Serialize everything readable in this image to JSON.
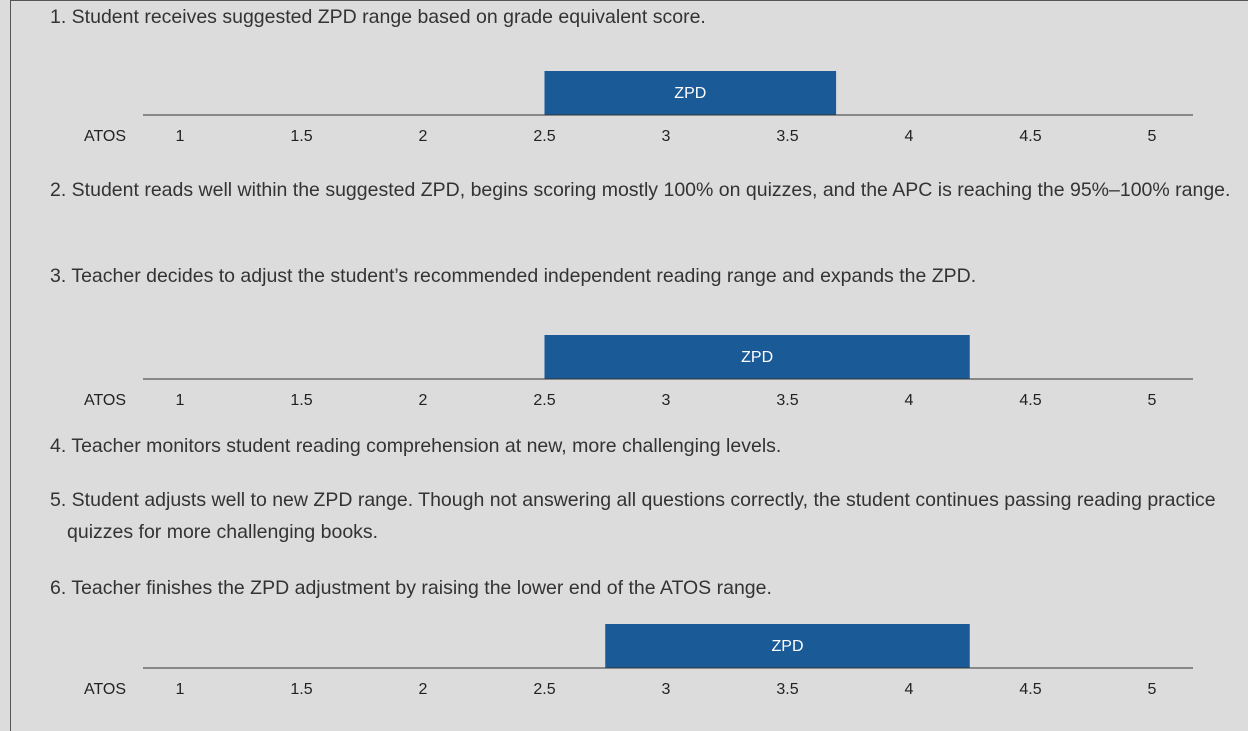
{
  "steps": [
    "1. Student receives suggested ZPD range based on grade equivalent score.",
    "2. Student reads well within the suggested ZPD, begins scoring mostly 100% on quizzes, and the APC is reaching the 95%–100% range.",
    "3. Teacher decides to adjust the student’s recommended independent reading range and expands the ZPD.",
    "4. Teacher monitors student reading comprehension at new, more challenging levels.",
    "5. Student adjusts well to new ZPD range. Though not answering all questions correctly, the student continues passing reading practice quizzes for more challenging books.",
    "6. Teacher finishes the ZPD adjustment by raising the lower end of the ATOS range."
  ],
  "scales": [
    {
      "axis_label": "ATOS",
      "ticks": [
        1,
        1.5,
        2,
        2.5,
        3,
        3.5,
        4,
        4.5,
        5
      ],
      "zpd_label": "ZPD",
      "zpd_range": [
        2.5,
        3.7
      ]
    },
    {
      "axis_label": "ATOS",
      "ticks": [
        1,
        1.5,
        2,
        2.5,
        3,
        3.5,
        4,
        4.5,
        5
      ],
      "zpd_label": "ZPD",
      "zpd_range": [
        2.5,
        4.25
      ]
    },
    {
      "axis_label": "ATOS",
      "ticks": [
        1,
        1.5,
        2,
        2.5,
        3,
        3.5,
        4,
        4.5,
        5
      ],
      "zpd_label": "ZPD",
      "zpd_range": [
        2.75,
        4.25
      ]
    }
  ]
}
